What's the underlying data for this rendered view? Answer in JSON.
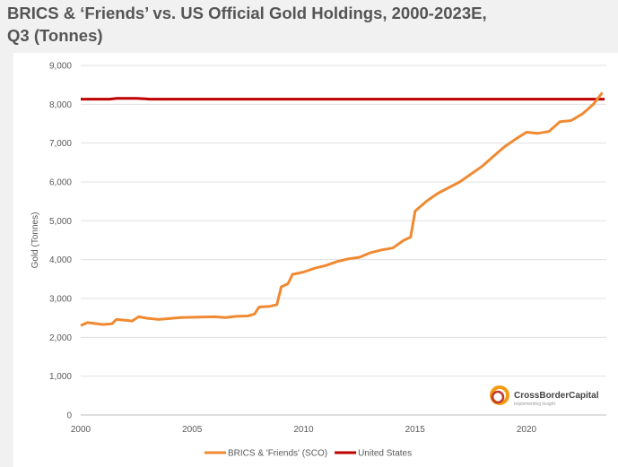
{
  "title": "BRICS & ‘Friends’ vs. US Official Gold Holdings, 2000-2023E, Q3 (Tonnes)",
  "logo": {
    "name": "CrossBorderCapital",
    "tagline": "Implementing insight"
  },
  "chart_data": {
    "type": "line",
    "title": "BRICS & ‘Friends’ vs. US Official Gold Holdings, 2000-2023E, Q3 (Tonnes)",
    "xlabel": "",
    "ylabel": "Gold (Tonnes)",
    "xlim": [
      2000,
      2023.5
    ],
    "ylim": [
      0,
      9000
    ],
    "xticks": [
      2000,
      2005,
      2010,
      2015,
      2020
    ],
    "yticks": [
      0,
      1000,
      2000,
      3000,
      4000,
      5000,
      6000,
      7000,
      8000,
      9000
    ],
    "ytick_labels": [
      "0",
      "1,000",
      "2,000",
      "3,000",
      "4,000",
      "5,000",
      "6,000",
      "7,000",
      "8,000",
      "9,000"
    ],
    "legend": "bottom",
    "series": [
      {
        "name": "BRICS & 'Friends' (SCO)",
        "color": "#f08a32",
        "x": [
          2000,
          2000.3,
          2001,
          2001.4,
          2001.6,
          2002,
          2002.3,
          2002.6,
          2003,
          2003.5,
          2004.5,
          2006,
          2006.5,
          2007,
          2007.5,
          2007.8,
          2008,
          2008.5,
          2008.8,
          2009,
          2009.3,
          2009.5,
          2010,
          2010.5,
          2011,
          2011.5,
          2012,
          2012.5,
          2013,
          2013.5,
          2014,
          2014.5,
          2014.8,
          2015,
          2015.5,
          2016,
          2016.5,
          2017,
          2017.5,
          2018,
          2018.5,
          2019,
          2019.5,
          2020,
          2020.5,
          2021,
          2021.5,
          2022,
          2022.5,
          2022.8,
          2023,
          2023.4
        ],
        "y": [
          2300,
          2380,
          2330,
          2350,
          2460,
          2440,
          2420,
          2530,
          2490,
          2460,
          2510,
          2530,
          2510,
          2540,
          2550,
          2600,
          2780,
          2800,
          2840,
          3300,
          3380,
          3620,
          3680,
          3780,
          3850,
          3950,
          4020,
          4060,
          4180,
          4250,
          4300,
          4500,
          4580,
          5250,
          5500,
          5700,
          5850,
          6000,
          6200,
          6400,
          6650,
          6900,
          7100,
          7280,
          7250,
          7300,
          7550,
          7580,
          7750,
          7900,
          8000,
          8300
        ]
      },
      {
        "name": "United States",
        "color": "#c00000",
        "x": [
          2000,
          2001.3,
          2001.6,
          2002.5,
          2002.9,
          2003.1,
          2023.5
        ],
        "y": [
          8133,
          8133,
          8150,
          8150,
          8140,
          8133,
          8133
        ]
      }
    ]
  }
}
